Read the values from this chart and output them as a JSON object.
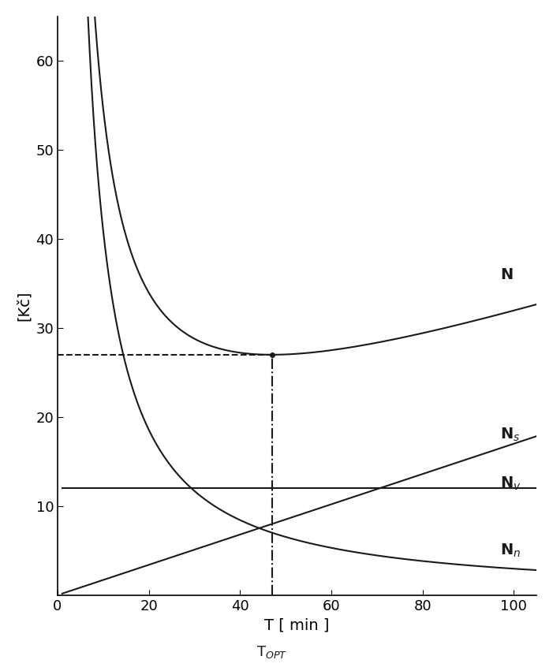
{
  "title": "",
  "xlabel": "T [ min ]",
  "ylabel": "[Kč]",
  "T_OPT": 47,
  "N_min": 27,
  "N_v_value": 12,
  "Nn_start": 6.5,
  "xlim": [
    0,
    105
  ],
  "ylim": [
    0,
    65
  ],
  "xticks": [
    0,
    20,
    40,
    60,
    80,
    100
  ],
  "yticks": [
    10,
    20,
    30,
    40,
    50,
    60
  ],
  "background_color": "#ffffff",
  "curve_color": "#1a1a1a",
  "label_N": "N",
  "label_Ns": "N$_s$",
  "label_Nv": "N$_v$",
  "label_Nn": "N$_n$",
  "label_TOPT": "T$_{OPT}$"
}
